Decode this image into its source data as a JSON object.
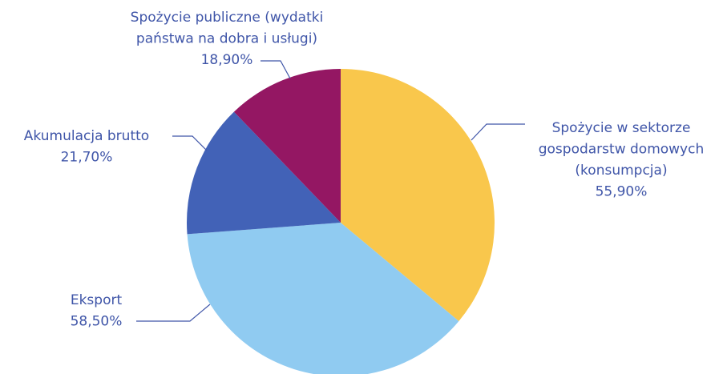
{
  "chart_data": {
    "type": "pie",
    "categories": [
      [
        "Spożycie w sektorze",
        "gospodarstw domowych",
        "(konsumpcja)"
      ],
      [
        "Eksport"
      ],
      [
        "Akumulacja brutto"
      ],
      [
        "Spożycie publiczne (wydatki",
        "państwa na dobra i usługi)"
      ]
    ],
    "values": [
      55.9,
      58.5,
      21.7,
      18.9
    ],
    "value_labels": [
      "55,90%",
      "58,50%",
      "21,70%",
      "18,90%"
    ],
    "colors": [
      "#f9c74c",
      "#90cbf1",
      "#4262b7",
      "#941763"
    ]
  }
}
